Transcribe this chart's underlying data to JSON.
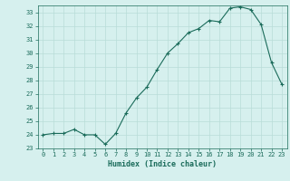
{
  "x": [
    0,
    1,
    2,
    3,
    4,
    5,
    6,
    7,
    8,
    9,
    10,
    11,
    12,
    13,
    14,
    15,
    16,
    17,
    18,
    19,
    20,
    21,
    22,
    23
  ],
  "y": [
    24.0,
    24.1,
    24.1,
    24.4,
    24.0,
    24.0,
    23.3,
    24.1,
    25.6,
    26.7,
    27.5,
    28.8,
    30.0,
    30.7,
    31.5,
    31.8,
    32.4,
    32.3,
    33.3,
    33.4,
    33.2,
    32.1,
    29.3,
    27.7
  ],
  "line_color": "#1a6b5a",
  "marker": "+",
  "marker_size": 3,
  "bg_color": "#d6f0ee",
  "grid_color": "#b8ddd8",
  "tick_color": "#1a6b5a",
  "label_color": "#1a6b5a",
  "xlabel": "Humidex (Indice chaleur)",
  "ylim": [
    23,
    33.5
  ],
  "yticks": [
    23,
    24,
    25,
    26,
    27,
    28,
    29,
    30,
    31,
    32,
    33
  ],
  "xticks": [
    0,
    1,
    2,
    3,
    4,
    5,
    6,
    7,
    8,
    9,
    10,
    11,
    12,
    13,
    14,
    15,
    16,
    17,
    18,
    19,
    20,
    21,
    22,
    23
  ],
  "font_family": "monospace",
  "tick_fontsize": 5.0,
  "xlabel_fontsize": 6.0
}
